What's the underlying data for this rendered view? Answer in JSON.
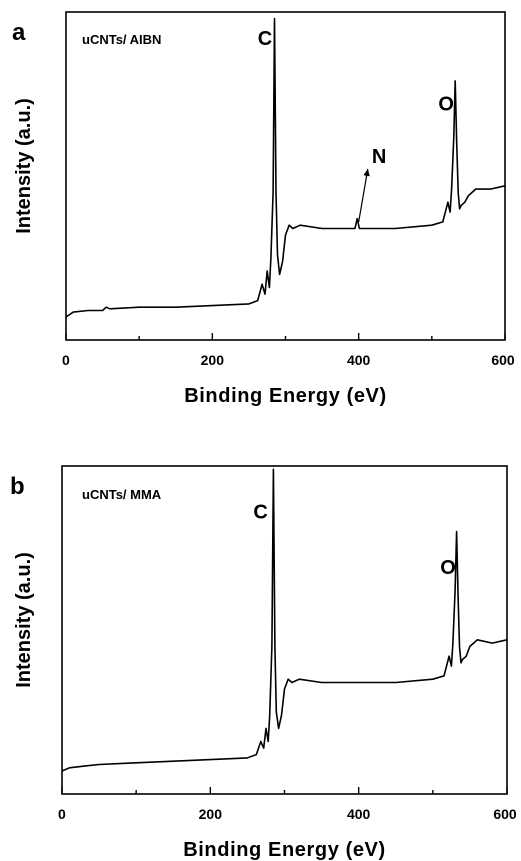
{
  "chart_data": [
    {
      "type": "line",
      "panel_letter": "a",
      "sample_label": "uCNTs/ AIBN",
      "xlabel": "Binding Energy (eV)",
      "ylabel": "Intensity (a.u.)",
      "xlim": [
        0,
        600
      ],
      "xticks": [
        0,
        200,
        400,
        600
      ],
      "minor_xticks": [
        100,
        300,
        500
      ],
      "y_ticks_shown": false,
      "ylim": [
        0,
        1
      ],
      "series": [
        {
          "x": [
            0,
            10,
            30,
            50,
            55,
            60,
            100,
            150,
            200,
            250,
            262,
            268,
            272,
            275,
            278,
            280,
            283,
            285,
            287,
            289,
            292,
            296,
            300,
            305,
            310,
            320,
            350,
            395,
            398,
            401,
            450,
            500,
            515,
            522,
            525,
            527,
            530,
            532,
            534,
            536,
            538,
            540,
            545,
            550,
            555,
            560,
            580,
            600
          ],
          "y": [
            0.07,
            0.085,
            0.09,
            0.09,
            0.1,
            0.095,
            0.1,
            0.1,
            0.105,
            0.11,
            0.12,
            0.17,
            0.14,
            0.21,
            0.16,
            0.25,
            0.45,
            0.98,
            0.45,
            0.26,
            0.2,
            0.24,
            0.32,
            0.35,
            0.34,
            0.35,
            0.34,
            0.34,
            0.37,
            0.34,
            0.34,
            0.35,
            0.36,
            0.42,
            0.39,
            0.46,
            0.62,
            0.79,
            0.6,
            0.45,
            0.4,
            0.41,
            0.42,
            0.44,
            0.45,
            0.46,
            0.46,
            0.47
          ]
        }
      ],
      "annotations": [
        {
          "text": "C",
          "x": 262,
          "y": 0.9
        },
        {
          "text": "N",
          "x": 418,
          "y": 0.54,
          "arrow_to_x": 400,
          "arrow_to_y": 0.36
        },
        {
          "text": "O",
          "x": 509,
          "y": 0.7
        }
      ]
    },
    {
      "type": "line",
      "panel_letter": "b",
      "sample_label": "uCNTs/ MMA",
      "xlabel": "Binding Energy (eV)",
      "ylabel": "Intensity (a.u.)",
      "xlim": [
        0,
        600
      ],
      "xticks": [
        0,
        200,
        400,
        600
      ],
      "minor_xticks": [
        100,
        300,
        500
      ],
      "y_ticks_shown": false,
      "ylim": [
        0,
        1
      ],
      "series": [
        {
          "x": [
            0,
            10,
            30,
            50,
            100,
            150,
            200,
            250,
            262,
            268,
            272,
            275,
            278,
            280,
            283,
            285,
            287,
            289,
            292,
            296,
            300,
            305,
            310,
            320,
            350,
            400,
            450,
            500,
            515,
            522,
            525,
            527,
            530,
            532,
            534,
            536,
            538,
            540,
            545,
            550,
            555,
            560,
            580,
            600
          ],
          "y": [
            0.07,
            0.08,
            0.085,
            0.09,
            0.095,
            0.1,
            0.105,
            0.11,
            0.12,
            0.16,
            0.14,
            0.2,
            0.16,
            0.24,
            0.45,
            0.99,
            0.45,
            0.25,
            0.2,
            0.24,
            0.32,
            0.35,
            0.34,
            0.35,
            0.34,
            0.34,
            0.34,
            0.35,
            0.36,
            0.42,
            0.39,
            0.46,
            0.62,
            0.8,
            0.6,
            0.45,
            0.4,
            0.41,
            0.42,
            0.45,
            0.46,
            0.47,
            0.46,
            0.47
          ]
        }
      ],
      "annotations": [
        {
          "text": "C",
          "x": 258,
          "y": 0.84
        },
        {
          "text": "O",
          "x": 510,
          "y": 0.67
        }
      ]
    }
  ]
}
